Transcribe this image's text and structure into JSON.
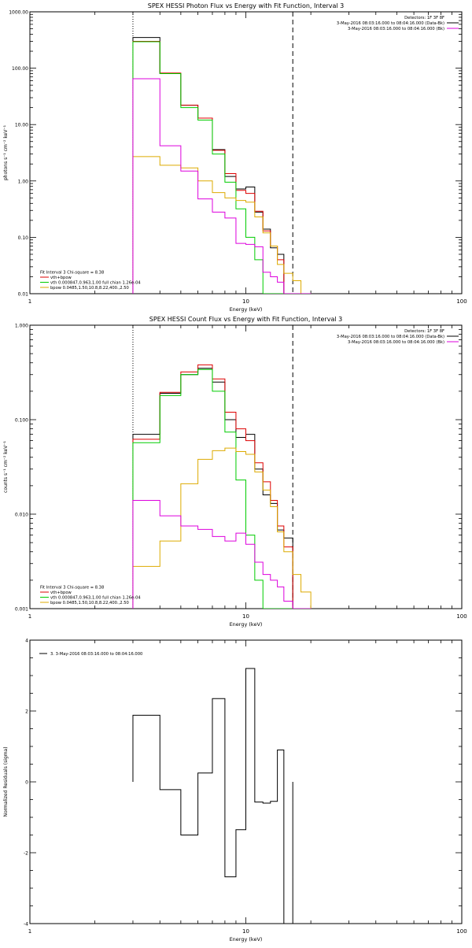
{
  "colors": {
    "data": "#000000",
    "total_fit": "#dd0000",
    "vth": "#00cc00",
    "bpow": "#ddaa00",
    "background": "#dd00dd",
    "residual": "#000000"
  },
  "chart_data": [
    {
      "type": "line",
      "style": "step",
      "title": "SPEX HESSI Photon Flux vs Energy with Fit Function, Interval 3",
      "xlabel": "Energy (keV)",
      "ylabel": "photons s⁻¹ cm⁻² keV⁻¹",
      "xscale": "log",
      "yscale": "log",
      "xlim": [
        1,
        100
      ],
      "ylim": [
        0.01,
        1000
      ],
      "xticks": [
        1,
        10,
        100
      ],
      "xtick_labels": [
        "1",
        "10",
        "100"
      ],
      "yticks": [
        0.01,
        0.1,
        1,
        10,
        100,
        1000
      ],
      "ytick_labels": [
        "0.01",
        "0.10",
        "1.00",
        "10.00",
        "100.00",
        "1000.00"
      ],
      "vlines": [
        {
          "x": 3,
          "style": "dotted"
        },
        {
          "x": 16.5,
          "style": "dashed"
        }
      ],
      "legend_top_right": [
        {
          "text": "Detectors: 1F 3F 8F",
          "color": ""
        },
        {
          "text": "3-May-2016 08:03:16.000 to 08:04:16.000 (Data-Bk)",
          "color": "data"
        },
        {
          "text": "3-May-2016 08:03:16.000 to 08:04:16.000 (Bk)",
          "color": "background"
        }
      ],
      "legend_bottom_left": [
        {
          "text": "Fit Interval 3   Chi-square = 8.38",
          "color": ""
        },
        {
          "text": "vth+bpow",
          "color": "total_fit"
        },
        {
          "text": "vth 0.000847,0.963,1.00  full chian 1.26e-04",
          "color": "vth"
        },
        {
          "text": "bpow 0.0485,1.50,10.8,8.22,400.,2.50",
          "color": "bpow"
        }
      ],
      "edges": [
        3,
        4,
        5,
        6,
        7,
        8,
        9,
        10,
        11,
        12,
        13,
        14,
        15,
        16.5,
        18,
        20
      ],
      "series": [
        {
          "name": "Data-Bk",
          "color": "data",
          "values": [
            350,
            80,
            22,
            13,
            3.6,
            1.2,
            0.72,
            0.78,
            0.28,
            0.14,
            0.065,
            0.05,
            0.01,
            0.01,
            0.01
          ]
        },
        {
          "name": "vth+bpow",
          "color": "total_fit",
          "values": [
            300,
            82,
            22,
            13,
            3.5,
            1.35,
            0.68,
            0.6,
            0.29,
            0.13,
            0.07,
            0.04,
            0.01,
            0.01,
            0.01
          ]
        },
        {
          "name": "vth",
          "color": "vth",
          "values": [
            295,
            80,
            20,
            12,
            3.0,
            0.95,
            0.32,
            0.1,
            0.04,
            0.01,
            0.01,
            0.01,
            0.01,
            0.01,
            0.01
          ]
        },
        {
          "name": "bpow",
          "color": "bpow",
          "values": [
            2.7,
            1.9,
            1.7,
            1.0,
            0.62,
            0.5,
            0.45,
            0.42,
            0.23,
            0.12,
            0.07,
            0.033,
            0.023,
            0.017,
            0.01
          ]
        },
        {
          "name": "Bk",
          "color": "background",
          "values": [
            65,
            4.2,
            1.5,
            0.48,
            0.28,
            0.22,
            0.078,
            0.075,
            0.068,
            0.024,
            0.02,
            0.016,
            0.01,
            0.01,
            0.01
          ]
        }
      ]
    },
    {
      "type": "line",
      "style": "step",
      "title": "SPEX HESSI Count Flux vs Energy with Fit Function, Interval 3",
      "xlabel": "Energy (keV)",
      "ylabel": "counts s⁻¹ cm⁻² keV⁻¹",
      "xscale": "log",
      "yscale": "log",
      "xlim": [
        1,
        100
      ],
      "ylim": [
        0.001,
        1
      ],
      "xticks": [
        1,
        10,
        100
      ],
      "xtick_labels": [
        "1",
        "10",
        "100"
      ],
      "yticks": [
        0.001,
        0.01,
        0.1,
        1
      ],
      "ytick_labels": [
        "0.001",
        "0.010",
        "0.100",
        "1.000"
      ],
      "vlines": [
        {
          "x": 3,
          "style": "dotted"
        },
        {
          "x": 16.5,
          "style": "dashed"
        }
      ],
      "legend_top_right": [
        {
          "text": "Detectors: 1F 3F 8F",
          "color": ""
        },
        {
          "text": "3-May-2016 08:03:16.000 to 08:04:16.000 (Data-Bk)",
          "color": "data"
        },
        {
          "text": "3-May-2016 08:03:16.000 to 08:04:16.000 (Bk)",
          "color": "background"
        }
      ],
      "legend_bottom_left": [
        {
          "text": "Fit Interval 3   Chi-square = 8.38",
          "color": ""
        },
        {
          "text": "vth+bpow",
          "color": "total_fit"
        },
        {
          "text": "vth 0.000847,0.963,1.00  full chian 1.26e-04",
          "color": "vth"
        },
        {
          "text": "bpow 0.0485,1.50,10.8,8.22,400.,2.50",
          "color": "bpow"
        }
      ],
      "edges": [
        3,
        4,
        5,
        6,
        7,
        8,
        9,
        10,
        11,
        12,
        13,
        14,
        15,
        16.5,
        18,
        20
      ],
      "series": [
        {
          "name": "Data-Bk",
          "color": "data",
          "values": [
            0.07,
            0.19,
            0.3,
            0.35,
            0.25,
            0.1,
            0.065,
            0.07,
            0.03,
            0.016,
            0.013,
            0.0068,
            0.0056,
            0.001,
            0.001
          ]
        },
        {
          "name": "vth+bpow",
          "color": "total_fit",
          "values": [
            0.062,
            0.195,
            0.32,
            0.38,
            0.27,
            0.12,
            0.08,
            0.06,
            0.035,
            0.022,
            0.014,
            0.0075,
            0.0045,
            0.001,
            0.001
          ]
        },
        {
          "name": "vth",
          "color": "vth",
          "values": [
            0.057,
            0.18,
            0.3,
            0.34,
            0.2,
            0.074,
            0.023,
            0.006,
            0.002,
            0.001,
            0.001,
            0.001,
            0.001,
            0.001,
            0.001
          ]
        },
        {
          "name": "bpow",
          "color": "bpow",
          "values": [
            0.0028,
            0.0052,
            0.021,
            0.038,
            0.047,
            0.05,
            0.046,
            0.043,
            0.028,
            0.018,
            0.012,
            0.0065,
            0.004,
            0.0023,
            0.0015
          ]
        },
        {
          "name": "Bk",
          "color": "background",
          "values": [
            0.014,
            0.0096,
            0.0075,
            0.0069,
            0.0058,
            0.0052,
            0.0063,
            0.0048,
            0.0031,
            0.0023,
            0.002,
            0.0017,
            0.0012,
            0.001,
            0.001
          ]
        }
      ]
    },
    {
      "type": "line",
      "style": "step",
      "title": "",
      "xlabel": "Energy (keV)",
      "ylabel": "Normalized Residuals (sigma)",
      "xscale": "log",
      "yscale": "linear",
      "xlim": [
        1,
        100
      ],
      "ylim": [
        -4,
        4
      ],
      "xticks": [
        1,
        10,
        100
      ],
      "xtick_labels": [
        "1",
        "10",
        "100"
      ],
      "yticks": [
        -4,
        -2,
        0,
        2,
        4
      ],
      "ytick_labels": [
        "-4",
        "-2",
        "0",
        "2",
        "4"
      ],
      "legend_top_left": [
        {
          "text": "3.  3-May-2016 08:03:16.000 to 08:04:16.000",
          "color": "residual"
        }
      ],
      "edges": [
        3,
        4,
        5,
        6,
        7,
        8,
        9,
        10,
        11,
        12,
        13,
        14,
        15,
        16.5
      ],
      "series": [
        {
          "name": "3.  3-May-2016 08:03:16.000 to 08:04:16.000",
          "color": "residual",
          "values": [
            1.88,
            -0.22,
            -1.5,
            0.25,
            2.35,
            -2.68,
            -1.35,
            3.2,
            -0.57,
            -0.6,
            -0.55,
            0.9,
            -4.0
          ]
        }
      ]
    }
  ]
}
